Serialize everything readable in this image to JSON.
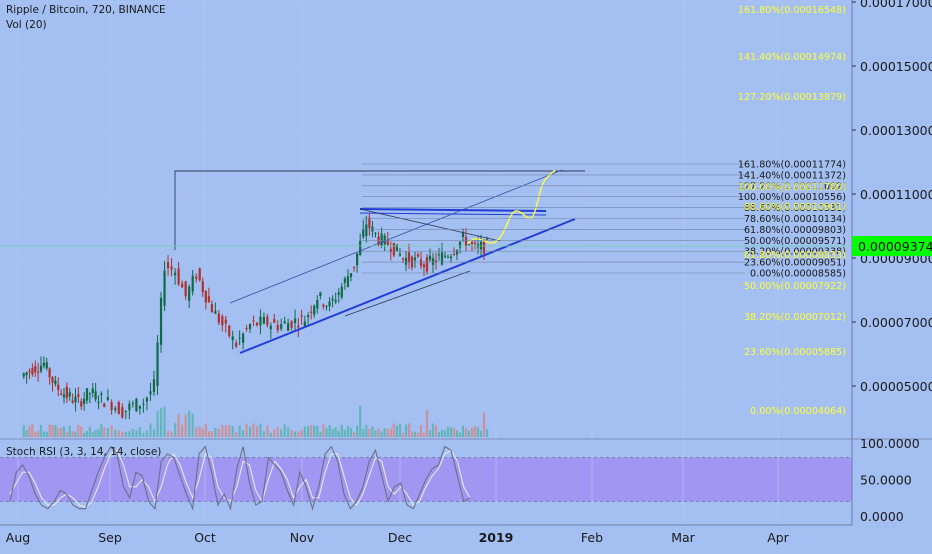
{
  "header": {
    "symbol_line": "Ripple / Bitcoin, 720, BINANCE",
    "volume_label": "Vol (20)",
    "stoch_label": "Stoch RSI (3, 3, 14, 14, close)"
  },
  "current_price": {
    "label": "0.00009374",
    "value": 9.374e-05,
    "color": "#00ff00"
  },
  "colors": {
    "background": "#a4bff2",
    "up_candle": "#0e6b44",
    "down_candle": "#b0302c",
    "fib_upper_text": "#1a1a1a",
    "fib_lower_text": "#ffff33",
    "trendline": "#1f3fd6",
    "projection": "#ffff44",
    "stoch_band": "#a18ff2"
  },
  "chart_data": [
    {
      "type": "candlestick",
      "title": "Ripple / Bitcoin, 720, BINANCE",
      "price_axis": {
        "ticks": [
          "0.00017000",
          "0.00015000",
          "0.00013000",
          "0.00011000",
          "0.00009000",
          "0.00007000",
          "0.00005000"
        ],
        "range": [
          3.95e-05,
          0.000172
        ]
      },
      "time_axis": {
        "ticks": [
          "Aug",
          "Sep",
          "Oct",
          "Nov",
          "Dec",
          "2019",
          "Feb",
          "Mar",
          "Apr"
        ],
        "bold_tick": "2019"
      },
      "anchor_points": [
        [
          "Aug",
          5.3e-05
        ],
        [
          "Aug",
          5.55e-05
        ],
        [
          "Aug",
          5.7e-05
        ],
        [
          "Aug",
          5e-05
        ],
        [
          "Aug",
          4.7e-05
        ],
        [
          "Aug",
          4.5e-05
        ],
        [
          "Aug",
          4.8e-05
        ],
        [
          "Aug",
          4.6e-05
        ],
        [
          "Sep",
          4.45e-05
        ],
        [
          "Sep",
          4.2e-05
        ],
        [
          "Sep",
          4.4e-05
        ],
        [
          "Sep",
          4.5e-05
        ],
        [
          "Sep",
          5e-05
        ],
        [
          "Sep",
          8.8e-05
        ],
        [
          "Sep",
          8.6e-05
        ],
        [
          "Sep",
          7.8e-05
        ],
        [
          "Sep",
          8.5e-05
        ],
        [
          "Oct",
          7.6e-05
        ],
        [
          "Oct",
          6.9e-05
        ],
        [
          "Oct",
          6.3e-05
        ],
        [
          "Oct",
          6.9e-05
        ],
        [
          "Oct",
          7e-05
        ],
        [
          "Oct",
          6.9e-05
        ],
        [
          "Oct",
          7e-05
        ],
        [
          "Nov",
          7.1e-05
        ],
        [
          "Nov",
          7.8e-05
        ],
        [
          "Nov",
          7.5e-05
        ],
        [
          "Nov",
          8.1e-05
        ],
        [
          "Nov",
          8.8e-05
        ],
        [
          "Nov",
          0.000101
        ],
        [
          "Nov",
          9.6e-05
        ],
        [
          "Nov",
          9.4e-05
        ],
        [
          "Dec",
          9e-05
        ],
        [
          "Dec",
          8.9e-05
        ],
        [
          "Dec",
          8.8e-05
        ],
        [
          "Dec",
          9e-05
        ],
        [
          "Dec",
          9.2e-05
        ],
        [
          "Dec",
          9.6e-05
        ],
        [
          "Dec",
          9.3e-05
        ],
        [
          "Dec",
          9.37e-05
        ]
      ]
    },
    {
      "type": "bar",
      "title": "Vol (20)"
    },
    {
      "type": "line",
      "title": "Stoch RSI (3, 3, 14, 14, close)",
      "axis_ticks": [
        "100.0000",
        "50.0000",
        "0.0000"
      ],
      "band": [
        20,
        80
      ],
      "k_values": [
        20,
        60,
        70,
        55,
        30,
        15,
        10,
        20,
        35,
        30,
        15,
        10,
        10,
        35,
        60,
        80,
        95,
        85,
        40,
        25,
        60,
        55,
        20,
        10,
        75,
        85,
        80,
        55,
        30,
        10,
        85,
        95,
        60,
        15,
        30,
        10,
        65,
        95,
        45,
        15,
        20,
        80,
        70,
        60,
        35,
        15,
        60,
        40,
        10,
        40,
        85,
        95,
        75,
        30,
        10,
        20,
        40,
        75,
        90,
        55,
        20,
        40,
        45,
        15,
        10,
        30,
        50,
        65,
        70,
        95,
        90,
        55,
        20,
        25
      ],
      "d_values": [
        30,
        45,
        60,
        60,
        45,
        25,
        15,
        15,
        25,
        30,
        25,
        15,
        12,
        20,
        40,
        65,
        85,
        90,
        70,
        40,
        40,
        50,
        40,
        20,
        40,
        70,
        85,
        70,
        45,
        25,
        50,
        85,
        80,
        40,
        25,
        20,
        40,
        75,
        70,
        35,
        20,
        50,
        75,
        65,
        50,
        25,
        40,
        50,
        25,
        25,
        60,
        85,
        85,
        55,
        25,
        15,
        30,
        55,
        80,
        75,
        40,
        30,
        40,
        30,
        15,
        20,
        40,
        55,
        65,
        85,
        90,
        75,
        40,
        25
      ]
    }
  ],
  "fib_levels_upper": [
    {
      "label": "161.80%(0.00011774)",
      "value": 0.00011774
    },
    {
      "label": "141.40%(0.00011372)",
      "value": 0.00011372
    },
    {
      "label": "127.20%(0.00011092)",
      "value": 0.00011092
    },
    {
      "label": "100.00%(0.00010556)",
      "value": 0.00010556
    },
    {
      "label": "88.60%(0.00010331)",
      "value": 0.00010331
    },
    {
      "label": "78.60%(0.00010134)",
      "value": 0.00010134
    },
    {
      "label": "61.80%(0.00009803)",
      "value": 9.803e-05
    },
    {
      "label": "50.00%(0.00009571)",
      "value": 9.571e-05
    },
    {
      "label": "38.20%(0.00009338)",
      "value": 9.338e-05
    },
    {
      "label": "23.60%(0.00009051)",
      "value": 9.051e-05
    },
    {
      "label": "0.00%(0.00008585)",
      "value": 8.585e-05
    }
  ],
  "fib_levels_lower": [
    {
      "label": "161.80%(0.00016548)",
      "value": 0.00016548
    },
    {
      "label": "141.40%(0.00014974)",
      "value": 0.00014974
    },
    {
      "label": "127.20%(0.00013879)",
      "value": 0.00013879
    },
    {
      "label": "100.00%(0.00011780)",
      "value": 0.0001178
    },
    {
      "label": "88.60%(0.00010901)",
      "value": 0.00010901
    },
    {
      "label": "61.80%(0.00008833)",
      "value": 8.833e-05
    },
    {
      "label": "50.00%(0.00007922)",
      "value": 7.922e-05
    },
    {
      "label": "38.20%(0.00007012)",
      "value": 7.012e-05
    },
    {
      "label": "23.60%(0.00005885)",
      "value": 5.885e-05
    },
    {
      "label": "0.00%(0.00004064)",
      "value": 4.064e-05
    }
  ]
}
